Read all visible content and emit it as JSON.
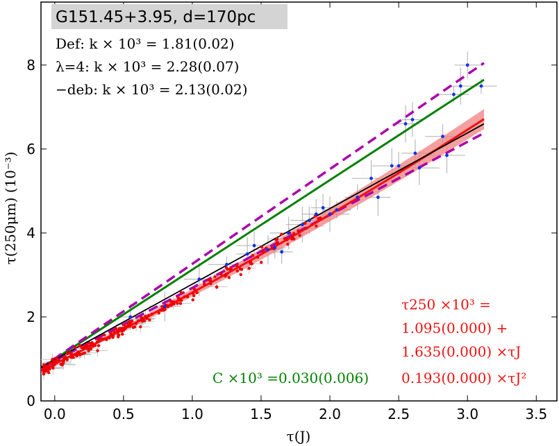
{
  "chart_data": {
    "type": "scatter",
    "title": "G151.45+3.95, d=170pc",
    "xlabel": "τ(J)",
    "ylabel": "τ(250μm) (10⁻³)",
    "xlim": [
      -0.1,
      3.65
    ],
    "ylim": [
      0,
      9.5
    ],
    "xticks": [
      0.0,
      0.5,
      1.0,
      1.5,
      2.0,
      2.5,
      3.0,
      3.5
    ],
    "xtick_labels": [
      "0.0",
      "0.5",
      "1.0",
      "1.5",
      "2.0",
      "2.5",
      "3.0",
      "3.5"
    ],
    "yticks": [
      0,
      2,
      4,
      6,
      8
    ],
    "ytick_labels": [
      "0",
      "2",
      "4",
      "6",
      "8"
    ],
    "fit_lines": [
      {
        "name": "Def",
        "label": "Def:   k  × 10³  = 1.81(0.02)",
        "color": "#000000"
      },
      {
        "name": "lambda4",
        "label": "λ=4:  k  × 10³  = 2.28(0.07)",
        "color": "#000000"
      },
      {
        "name": "deb",
        "label": "−deb: k  × 10³  = 2.13(0.02)",
        "color": "#000000"
      }
    ],
    "lines": {
      "black_linear": {
        "x": [
          -0.1,
          3.12
        ],
        "y": [
          0.8,
          6.6
        ],
        "color": "#000000"
      },
      "green_linear": {
        "x": [
          -0.1,
          3.12
        ],
        "y": [
          0.78,
          7.65
        ],
        "color": "#008000"
      },
      "magenta_upper": {
        "x": [
          -0.1,
          3.12
        ],
        "y": [
          0.78,
          8.05
        ],
        "color": "#aa00aa"
      },
      "magenta_lower": {
        "x": [
          -0.1,
          3.12
        ],
        "y": [
          0.78,
          6.38
        ],
        "color": "#aa00aa"
      },
      "red_quadratic": {
        "a0": 1.095,
        "a1": 1.635,
        "a2": 0.193,
        "xrange": [
          -0.1,
          3.12
        ],
        "color": "#ee1111"
      }
    },
    "blue_points": [
      [
        0.55,
        2.0
      ],
      [
        0.8,
        2.25
      ],
      [
        1.05,
        2.9
      ],
      [
        1.25,
        3.25
      ],
      [
        1.4,
        3.5
      ],
      [
        1.45,
        3.7
      ],
      [
        1.55,
        3.6
      ],
      [
        1.6,
        3.65
      ],
      [
        1.65,
        3.55
      ],
      [
        1.7,
        4.0
      ],
      [
        1.8,
        4.2
      ],
      [
        1.85,
        4.3
      ],
      [
        1.9,
        4.45
      ],
      [
        1.95,
        4.6
      ],
      [
        2.0,
        4.45
      ],
      [
        2.05,
        4.55
      ],
      [
        2.2,
        4.85
      ],
      [
        2.3,
        5.3
      ],
      [
        2.35,
        4.85
      ],
      [
        2.45,
        5.6
      ],
      [
        2.5,
        5.6
      ],
      [
        2.55,
        6.6
      ],
      [
        2.6,
        6.7
      ],
      [
        2.62,
        5.9
      ],
      [
        2.65,
        5.55
      ],
      [
        2.85,
        5.85
      ],
      [
        2.9,
        7.3
      ],
      [
        2.95,
        7.5
      ],
      [
        3.0,
        8.0
      ],
      [
        3.1,
        7.5
      ],
      [
        2.82,
        6.3
      ]
    ],
    "annotations": {
      "red_fit": {
        "line1": "τ250 ×10³   =",
        "line2": "1.095(0.000) +",
        "line3": "1.635(0.000) ×τJ",
        "line4": "0.193(0.000) ×τJ²"
      },
      "green_fit": "C ×10³  =0.030(0.006)"
    }
  }
}
